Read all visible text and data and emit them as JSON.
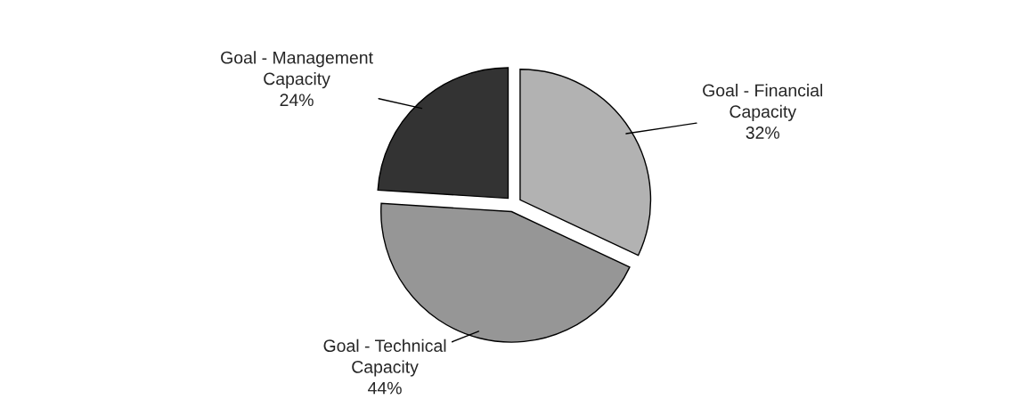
{
  "chart_data": {
    "type": "pie",
    "categories": [
      "Goal - Financial\nCapacity",
      "Goal - Technical\nCapacity",
      "Goal - Management\nCapacity"
    ],
    "values": [
      32,
      44,
      24
    ],
    "value_labels": [
      "32%",
      "44%",
      "24%"
    ],
    "colors": [
      "#b2b2b2",
      "#969696",
      "#333333"
    ],
    "legend": false
  }
}
